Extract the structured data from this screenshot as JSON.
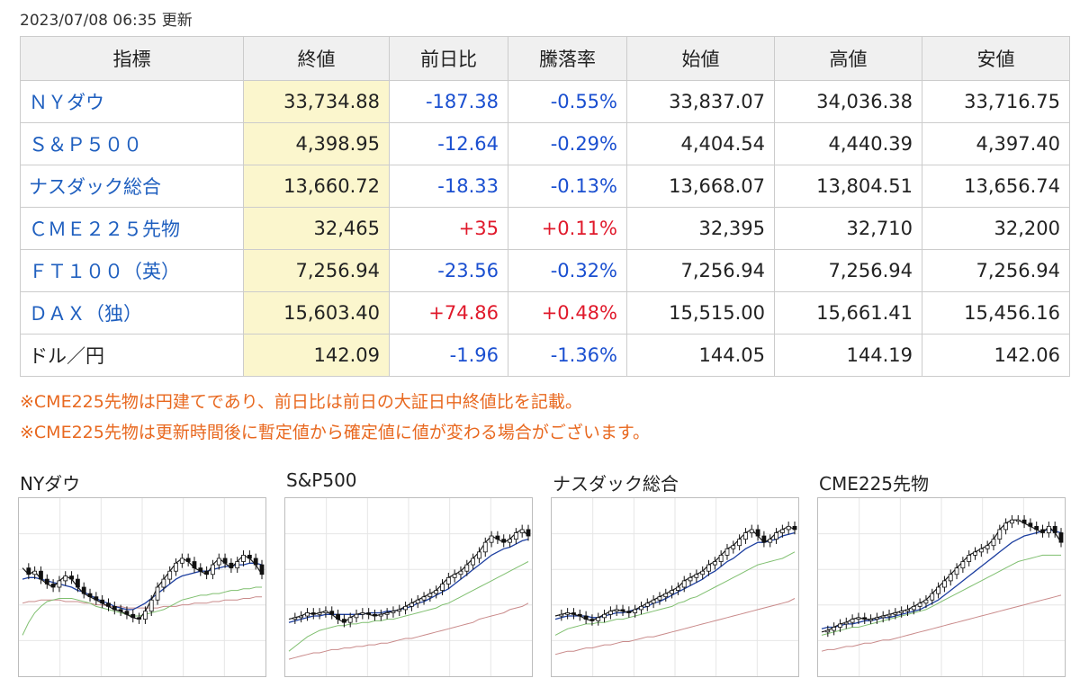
{
  "updated": "2023/07/08 06:35 更新",
  "headers": [
    "指標",
    "終値",
    "前日比",
    "騰落率",
    "始値",
    "高値",
    "安値"
  ],
  "rows": [
    {
      "name": "ＮＹダウ",
      "close": "33,734.88",
      "change": "-187.38",
      "pct": "-0.55%",
      "open": "33,837.07",
      "high": "34,036.38",
      "low": "33,716.75",
      "dir": "down",
      "link": true
    },
    {
      "name": "Ｓ＆Ｐ５００",
      "close": "4,398.95",
      "change": "-12.64",
      "pct": "-0.29%",
      "open": "4,404.54",
      "high": "4,440.39",
      "low": "4,397.40",
      "dir": "down",
      "link": true
    },
    {
      "name": "ナスダック総合",
      "close": "13,660.72",
      "change": "-18.33",
      "pct": "-0.13%",
      "open": "13,668.07",
      "high": "13,804.51",
      "low": "13,656.74",
      "dir": "down",
      "link": true
    },
    {
      "name": "ＣＭＥ２２５先物",
      "close": "32,465",
      "change": "+35",
      "pct": "+0.11%",
      "open": "32,395",
      "high": "32,710",
      "low": "32,200",
      "dir": "up",
      "link": true
    },
    {
      "name": "ＦＴ１００（英）",
      "close": "7,256.94",
      "change": "-23.56",
      "pct": "-0.32%",
      "open": "7,256.94",
      "high": "7,256.94",
      "low": "7,256.94",
      "dir": "down",
      "link": true
    },
    {
      "name": "ＤＡＸ（独）",
      "close": "15,603.40",
      "change": "+74.86",
      "pct": "+0.48%",
      "open": "15,515.00",
      "high": "15,661.41",
      "low": "15,456.16",
      "dir": "up",
      "link": true
    },
    {
      "name": "ドル／円",
      "close": "142.09",
      "change": "-1.96",
      "pct": "-1.36%",
      "open": "144.05",
      "high": "144.19",
      "low": "142.06",
      "dir": "down",
      "link": false
    }
  ],
  "notes": [
    "※CME225先物は円建てであり、前日比は前日の大証日中終値比を記載。",
    "※CME225先物は更新時間後に暫定値から確定値に値が変わる場合がございます。"
  ],
  "charts": [
    {
      "title": "NYダウ"
    },
    {
      "title": "S&P500"
    },
    {
      "title": "ナスダック総合"
    },
    {
      "title": "CME225先物"
    }
  ],
  "colors": {
    "link": "#1f5fbf",
    "down": "#1a4fd0",
    "up": "#e0192b",
    "note": "#e8681f",
    "close_bg": "#fbf6cd",
    "header_bg": "#f0f0f0"
  },
  "chart_data": [
    {
      "type": "line",
      "series": [
        {
          "values": [
            62,
            58,
            60,
            55,
            52,
            50,
            54,
            57,
            55,
            50,
            46,
            44,
            42,
            40,
            38,
            36,
            35,
            33,
            31,
            30,
            35,
            42,
            50,
            55,
            60,
            65,
            68,
            66,
            62,
            60,
            58,
            64,
            68,
            65,
            62,
            66,
            70,
            68,
            64,
            58
          ]
        },
        {
          "values": [
            55,
            56,
            56,
            55,
            54,
            53,
            52,
            51,
            50,
            48,
            47,
            45,
            43,
            41,
            40,
            38,
            37,
            36,
            36,
            38,
            40,
            43,
            46,
            49,
            52,
            55,
            57,
            58,
            59,
            60,
            60,
            61,
            62,
            63,
            63,
            64,
            64,
            65,
            65,
            64
          ]
        },
        {
          "values": [
            20,
            28,
            34,
            38,
            41,
            42,
            43,
            43,
            43,
            42,
            41,
            40,
            38,
            37,
            36,
            35,
            34,
            33,
            32,
            32,
            33,
            34,
            35,
            36,
            38,
            40,
            42,
            43,
            44,
            45,
            45,
            46,
            46,
            47,
            48,
            48,
            49,
            49,
            50,
            50
          ]
        },
        {
          "values": [
            40,
            41,
            41,
            42,
            42,
            42,
            42,
            41,
            41,
            41,
            40,
            40,
            39,
            39,
            38,
            38,
            38,
            37,
            37,
            37,
            37,
            37,
            37,
            38,
            38,
            38,
            39,
            39,
            40,
            40,
            40,
            41,
            41,
            42,
            42,
            42,
            43,
            43,
            44,
            44
          ]
        }
      ]
    },
    {
      "type": "line",
      "series": [
        {
          "values": [
            30,
            31,
            32,
            34,
            33,
            34,
            35,
            33,
            30,
            28,
            31,
            33,
            34,
            33,
            32,
            33,
            34,
            35,
            36,
            38,
            40,
            42,
            44,
            46,
            48,
            52,
            56,
            58,
            60,
            64,
            68,
            72,
            78,
            82,
            80,
            78,
            80,
            84,
            86,
            82
          ]
        },
        {
          "values": [
            28,
            29,
            30,
            31,
            32,
            32,
            33,
            33,
            33,
            33,
            33,
            33,
            33,
            34,
            34,
            34,
            35,
            35,
            36,
            37,
            38,
            40,
            41,
            43,
            45,
            47,
            49,
            52,
            55,
            58,
            61,
            64,
            67,
            70,
            72,
            74,
            75,
            77,
            79,
            80
          ]
        },
        {
          "values": [
            10,
            13,
            16,
            19,
            21,
            23,
            24,
            25,
            26,
            26,
            27,
            27,
            28,
            28,
            29,
            29,
            30,
            30,
            31,
            32,
            33,
            34,
            35,
            36,
            37,
            39,
            40,
            42,
            44,
            46,
            48,
            50,
            52,
            54,
            56,
            58,
            60,
            62,
            64,
            66
          ]
        },
        {
          "values": [
            5,
            6,
            7,
            8,
            9,
            9,
            10,
            11,
            11,
            12,
            12,
            13,
            13,
            14,
            14,
            15,
            15,
            16,
            17,
            18,
            18,
            19,
            20,
            21,
            22,
            23,
            24,
            25,
            26,
            27,
            28,
            30,
            31,
            32,
            33,
            34,
            36,
            37,
            38,
            40
          ]
        }
      ]
    },
    {
      "type": "line",
      "series": [
        {
          "values": [
            32,
            33,
            34,
            33,
            32,
            30,
            29,
            31,
            33,
            35,
            36,
            35,
            34,
            36,
            38,
            40,
            42,
            44,
            46,
            48,
            50,
            54,
            56,
            58,
            60,
            64,
            66,
            70,
            74,
            76,
            80,
            84,
            86,
            82,
            78,
            80,
            84,
            86,
            88,
            86
          ]
        },
        {
          "values": [
            30,
            31,
            32,
            32,
            32,
            32,
            31,
            31,
            32,
            33,
            34,
            34,
            35,
            36,
            37,
            38,
            40,
            41,
            43,
            45,
            47,
            49,
            51,
            53,
            55,
            58,
            60,
            63,
            66,
            68,
            71,
            74,
            76,
            78,
            78,
            79,
            80,
            82,
            83,
            84
          ]
        },
        {
          "values": [
            20,
            22,
            24,
            25,
            26,
            27,
            27,
            28,
            28,
            29,
            30,
            30,
            31,
            32,
            33,
            34,
            35,
            36,
            37,
            38,
            40,
            41,
            43,
            44,
            46,
            48,
            50,
            52,
            54,
            56,
            58,
            60,
            62,
            64,
            65,
            66,
            67,
            68,
            70,
            72
          ]
        },
        {
          "values": [
            8,
            9,
            10,
            10,
            11,
            12,
            12,
            13,
            14,
            14,
            15,
            16,
            16,
            17,
            18,
            19,
            19,
            20,
            21,
            22,
            23,
            24,
            25,
            26,
            27,
            28,
            29,
            30,
            31,
            32,
            33,
            34,
            35,
            36,
            37,
            38,
            39,
            40,
            41,
            43
          ]
        }
      ]
    },
    {
      "type": "line",
      "series": [
        {
          "values": [
            22,
            23,
            25,
            27,
            28,
            30,
            31,
            30,
            30,
            31,
            32,
            33,
            34,
            35,
            36,
            38,
            40,
            42,
            46,
            50,
            54,
            58,
            62,
            66,
            70,
            72,
            74,
            76,
            80,
            86,
            90,
            92,
            92,
            90,
            88,
            86,
            84,
            88,
            84,
            78
          ]
        },
        {
          "values": [
            24,
            25,
            25,
            26,
            27,
            27,
            28,
            29,
            29,
            30,
            31,
            31,
            32,
            33,
            34,
            35,
            36,
            38,
            40,
            42,
            45,
            48,
            51,
            54,
            57,
            60,
            63,
            66,
            69,
            72,
            75,
            78,
            80,
            82,
            83,
            84,
            85,
            86,
            85,
            84
          ]
        },
        {
          "values": [
            20,
            21,
            22,
            23,
            24,
            25,
            25,
            26,
            27,
            28,
            29,
            30,
            31,
            32,
            33,
            34,
            35,
            36,
            38,
            40,
            42,
            44,
            46,
            48,
            50,
            52,
            54,
            56,
            58,
            60,
            62,
            64,
            66,
            67,
            68,
            69,
            70,
            70,
            70,
            70
          ]
        },
        {
          "values": [
            10,
            11,
            11,
            12,
            13,
            13,
            14,
            15,
            15,
            16,
            17,
            17,
            18,
            19,
            20,
            21,
            22,
            23,
            24,
            25,
            26,
            27,
            28,
            29,
            30,
            31,
            32,
            33,
            34,
            35,
            36,
            37,
            38,
            39,
            40,
            41,
            42,
            43,
            44,
            45
          ]
        }
      ]
    }
  ]
}
